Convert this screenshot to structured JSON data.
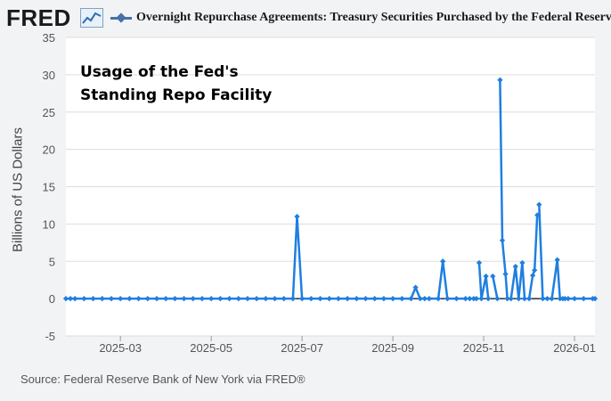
{
  "header": {
    "logo": "FRED",
    "series_title": "Overnight Repurchase Agreements: Treasury Securities Purchased by the Federal Reserve"
  },
  "source": "Source: Federal Reserve Bank of New York via FRED®",
  "colors": {
    "series": "#1f7fe0",
    "zero_line": "#000000",
    "grid": "#dddddd"
  },
  "annotation": {
    "line1": "Usage of the Fed's",
    "line2": "Standing Repo Facility"
  },
  "chart_data": {
    "type": "line",
    "title": "Usage of the Fed's Standing Repo Facility",
    "xlabel": "",
    "ylabel": "Billions of US Dollars",
    "ylim": [
      -5,
      35
    ],
    "yticks": [
      -5,
      0,
      5,
      10,
      15,
      20,
      25,
      30,
      35
    ],
    "xlim": [
      1.0,
      12.65
    ],
    "xticks": [
      {
        "x": 2.2,
        "label": "2025-03"
      },
      {
        "x": 4.2,
        "label": "2025-05"
      },
      {
        "x": 6.2,
        "label": "2025-07"
      },
      {
        "x": 8.2,
        "label": "2025-09"
      },
      {
        "x": 10.2,
        "label": "2025-11"
      },
      {
        "x": 12.2,
        "label": "2026-01"
      }
    ],
    "series": [
      {
        "name": "Overnight Repurchase Agreements: Treasury Securities Purchased by the Federal Reserve",
        "x": [
          1.0,
          1.1,
          1.2,
          1.4,
          1.6,
          1.8,
          2.0,
          2.2,
          2.4,
          2.6,
          2.8,
          3.0,
          3.2,
          3.4,
          3.6,
          3.8,
          4.0,
          4.2,
          4.4,
          4.6,
          4.8,
          5.0,
          5.2,
          5.4,
          5.6,
          5.8,
          6.0,
          6.09,
          6.2,
          6.4,
          6.6,
          6.8,
          7.0,
          7.2,
          7.4,
          7.6,
          7.8,
          8.0,
          8.2,
          8.4,
          8.6,
          8.7,
          8.8,
          8.9,
          9.0,
          9.2,
          9.3,
          9.4,
          9.6,
          9.8,
          9.89,
          9.98,
          10.04,
          10.1,
          10.15,
          10.25,
          10.3,
          10.4,
          10.5,
          10.56,
          10.61,
          10.68,
          10.72,
          10.8,
          10.9,
          10.97,
          11.05,
          11.1,
          11.2,
          11.28,
          11.32,
          11.38,
          11.42,
          11.5,
          11.6,
          11.7,
          11.82,
          11.88,
          11.94,
          11.99,
          12.06,
          12.2,
          12.4,
          12.6,
          12.65
        ],
        "values": [
          0,
          0,
          0,
          0,
          0,
          0,
          0,
          0,
          0,
          0,
          0,
          0,
          0,
          0,
          0,
          0,
          0,
          0,
          0,
          0,
          0,
          0,
          0,
          0,
          0,
          0,
          0,
          11,
          0,
          0,
          0,
          0,
          0,
          0,
          0,
          0,
          0,
          0,
          0,
          0,
          0,
          1.5,
          0,
          0,
          0,
          0,
          5,
          0,
          0,
          0,
          0,
          0,
          0,
          4.8,
          0,
          3,
          0,
          3,
          0,
          29.3,
          7.8,
          3.3,
          0,
          0,
          4.3,
          0,
          4.8,
          0,
          0,
          3.1,
          3.8,
          11.2,
          12.6,
          0,
          0,
          0,
          5.2,
          0,
          0,
          0,
          0,
          0,
          0,
          0,
          0
        ],
        "gaps_after_index": [
          49,
          52,
          56,
          58,
          62,
          67,
          71,
          77
        ]
      }
    ]
  }
}
